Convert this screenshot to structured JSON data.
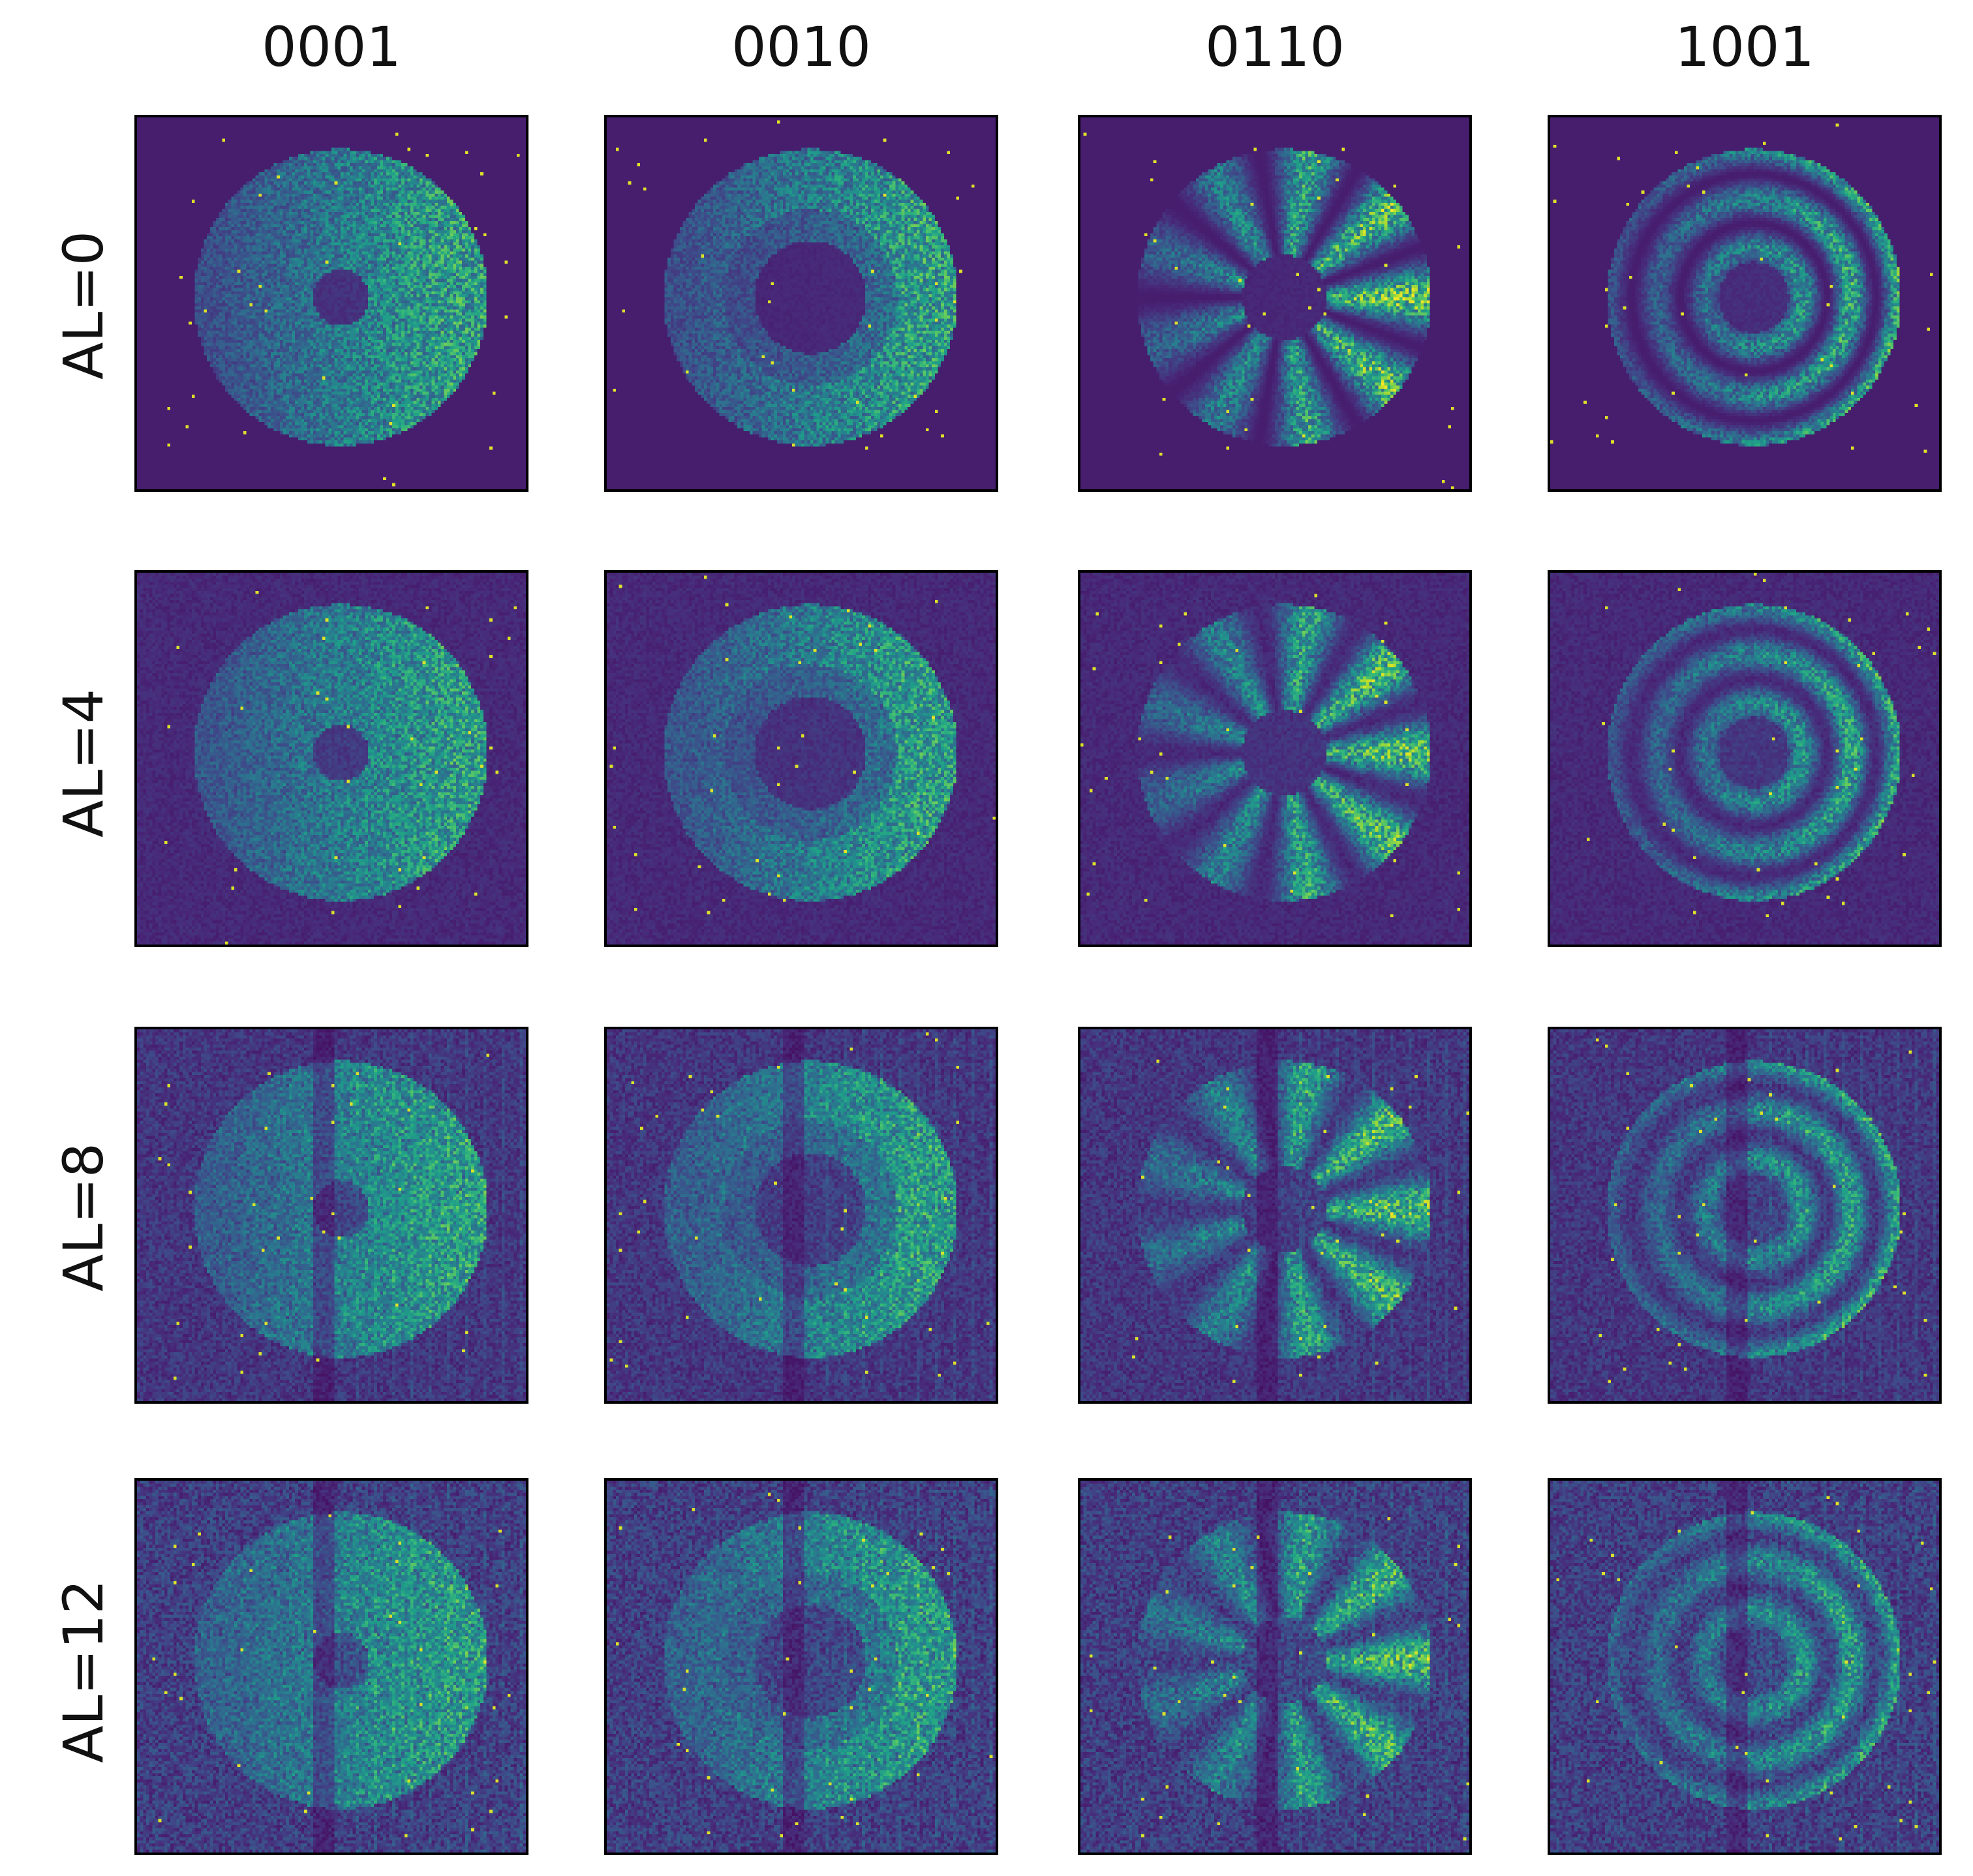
{
  "columns": [
    {
      "label": "0001",
      "pattern": "hollow"
    },
    {
      "label": "0010",
      "pattern": "ring"
    },
    {
      "label": "0110",
      "pattern": "petals"
    },
    {
      "label": "1001",
      "pattern": "rings"
    }
  ],
  "rows": [
    {
      "label": "AL=0",
      "noise": 0.0
    },
    {
      "label": "AL=4",
      "noise": 0.25
    },
    {
      "label": "AL=8",
      "noise": 0.55
    },
    {
      "label": "AL=12",
      "noise": 0.75
    }
  ],
  "colormap": "viridis"
}
